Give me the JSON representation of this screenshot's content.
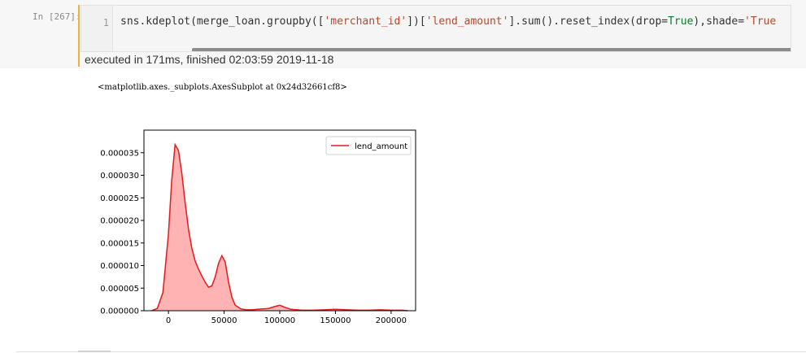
{
  "cell": {
    "prompt": "In [267]:",
    "line_number": "1",
    "code_tokens": [
      {
        "t": "sns.kdeplot(merge_loan.groupby([",
        "c": "name"
      },
      {
        "t": "'merchant_id'",
        "c": "str"
      },
      {
        "t": "])[",
        "c": "name"
      },
      {
        "t": "'lend_amount'",
        "c": "str"
      },
      {
        "t": "].sum().reset_index(drop=",
        "c": "name"
      },
      {
        "t": "True",
        "c": "kw"
      },
      {
        "t": "),shade=",
        "c": "name"
      },
      {
        "t": "'True",
        "c": "str"
      }
    ],
    "exec_info": "executed in 171ms, finished 02:03:59 2019-11-18",
    "accent_color": "#f0b03c"
  },
  "output": {
    "repr_text": "<matplotlib.axes._subplots.AxesSubplot at 0x24d32661cf8>"
  },
  "chart_data": {
    "type": "area",
    "title": "",
    "xlabel": "",
    "ylabel": "",
    "xlim": [
      -22000,
      222000
    ],
    "ylim": [
      0,
      4e-05
    ],
    "x_ticks": [
      0,
      50000,
      100000,
      150000,
      200000
    ],
    "x_tick_labels": [
      "0",
      "50000",
      "100000",
      "150000",
      "200000"
    ],
    "y_ticks": [
      0,
      5e-06,
      1e-05,
      1.5e-05,
      2e-05,
      2.5e-05,
      3e-05,
      3.5e-05
    ],
    "y_tick_labels": [
      "0.000000",
      "0.000005",
      "0.000010",
      "0.000015",
      "0.000020",
      "0.000025",
      "0.000030",
      "0.000035"
    ],
    "legend": {
      "placement": "upper-right",
      "entries": [
        "lend_amount"
      ]
    },
    "grid": false,
    "line_color": "#e41a1c",
    "fill_color": "#ffb3b3",
    "series": [
      {
        "name": "lend_amount",
        "x": [
          -15000,
          -10000,
          -5000,
          0,
          3000,
          6000,
          9000,
          12000,
          15000,
          18000,
          21000,
          24000,
          27000,
          30000,
          33000,
          36000,
          39000,
          42000,
          45000,
          48000,
          51000,
          54000,
          57000,
          60000,
          65000,
          70000,
          75000,
          80000,
          85000,
          90000,
          95000,
          100000,
          105000,
          110000,
          115000,
          120000,
          130000,
          140000,
          150000,
          160000,
          170000,
          180000,
          190000,
          200000,
          210000,
          215000
        ],
        "y": [
          0,
          5e-07,
          4e-06,
          1.7e-05,
          2.9e-05,
          3.68e-05,
          3.55e-05,
          3.05e-05,
          2.4e-05,
          1.8e-05,
          1.38e-05,
          1.1e-05,
          9.2e-06,
          7.7e-06,
          6.3e-06,
          5.2e-06,
          5.5e-06,
          7.5e-06,
          1.05e-05,
          1.22e-05,
          1.08e-05,
          6.3e-06,
          3e-06,
          1.2e-06,
          4e-07,
          2e-07,
          2e-07,
          3e-07,
          4e-07,
          5e-07,
          9e-07,
          1.2e-06,
          7e-07,
          3e-07,
          2e-07,
          1e-07,
          1e-07,
          2e-07,
          3e-07,
          2e-07,
          1e-07,
          1e-07,
          2e-07,
          1e-07,
          1e-07,
          0
        ]
      }
    ]
  }
}
